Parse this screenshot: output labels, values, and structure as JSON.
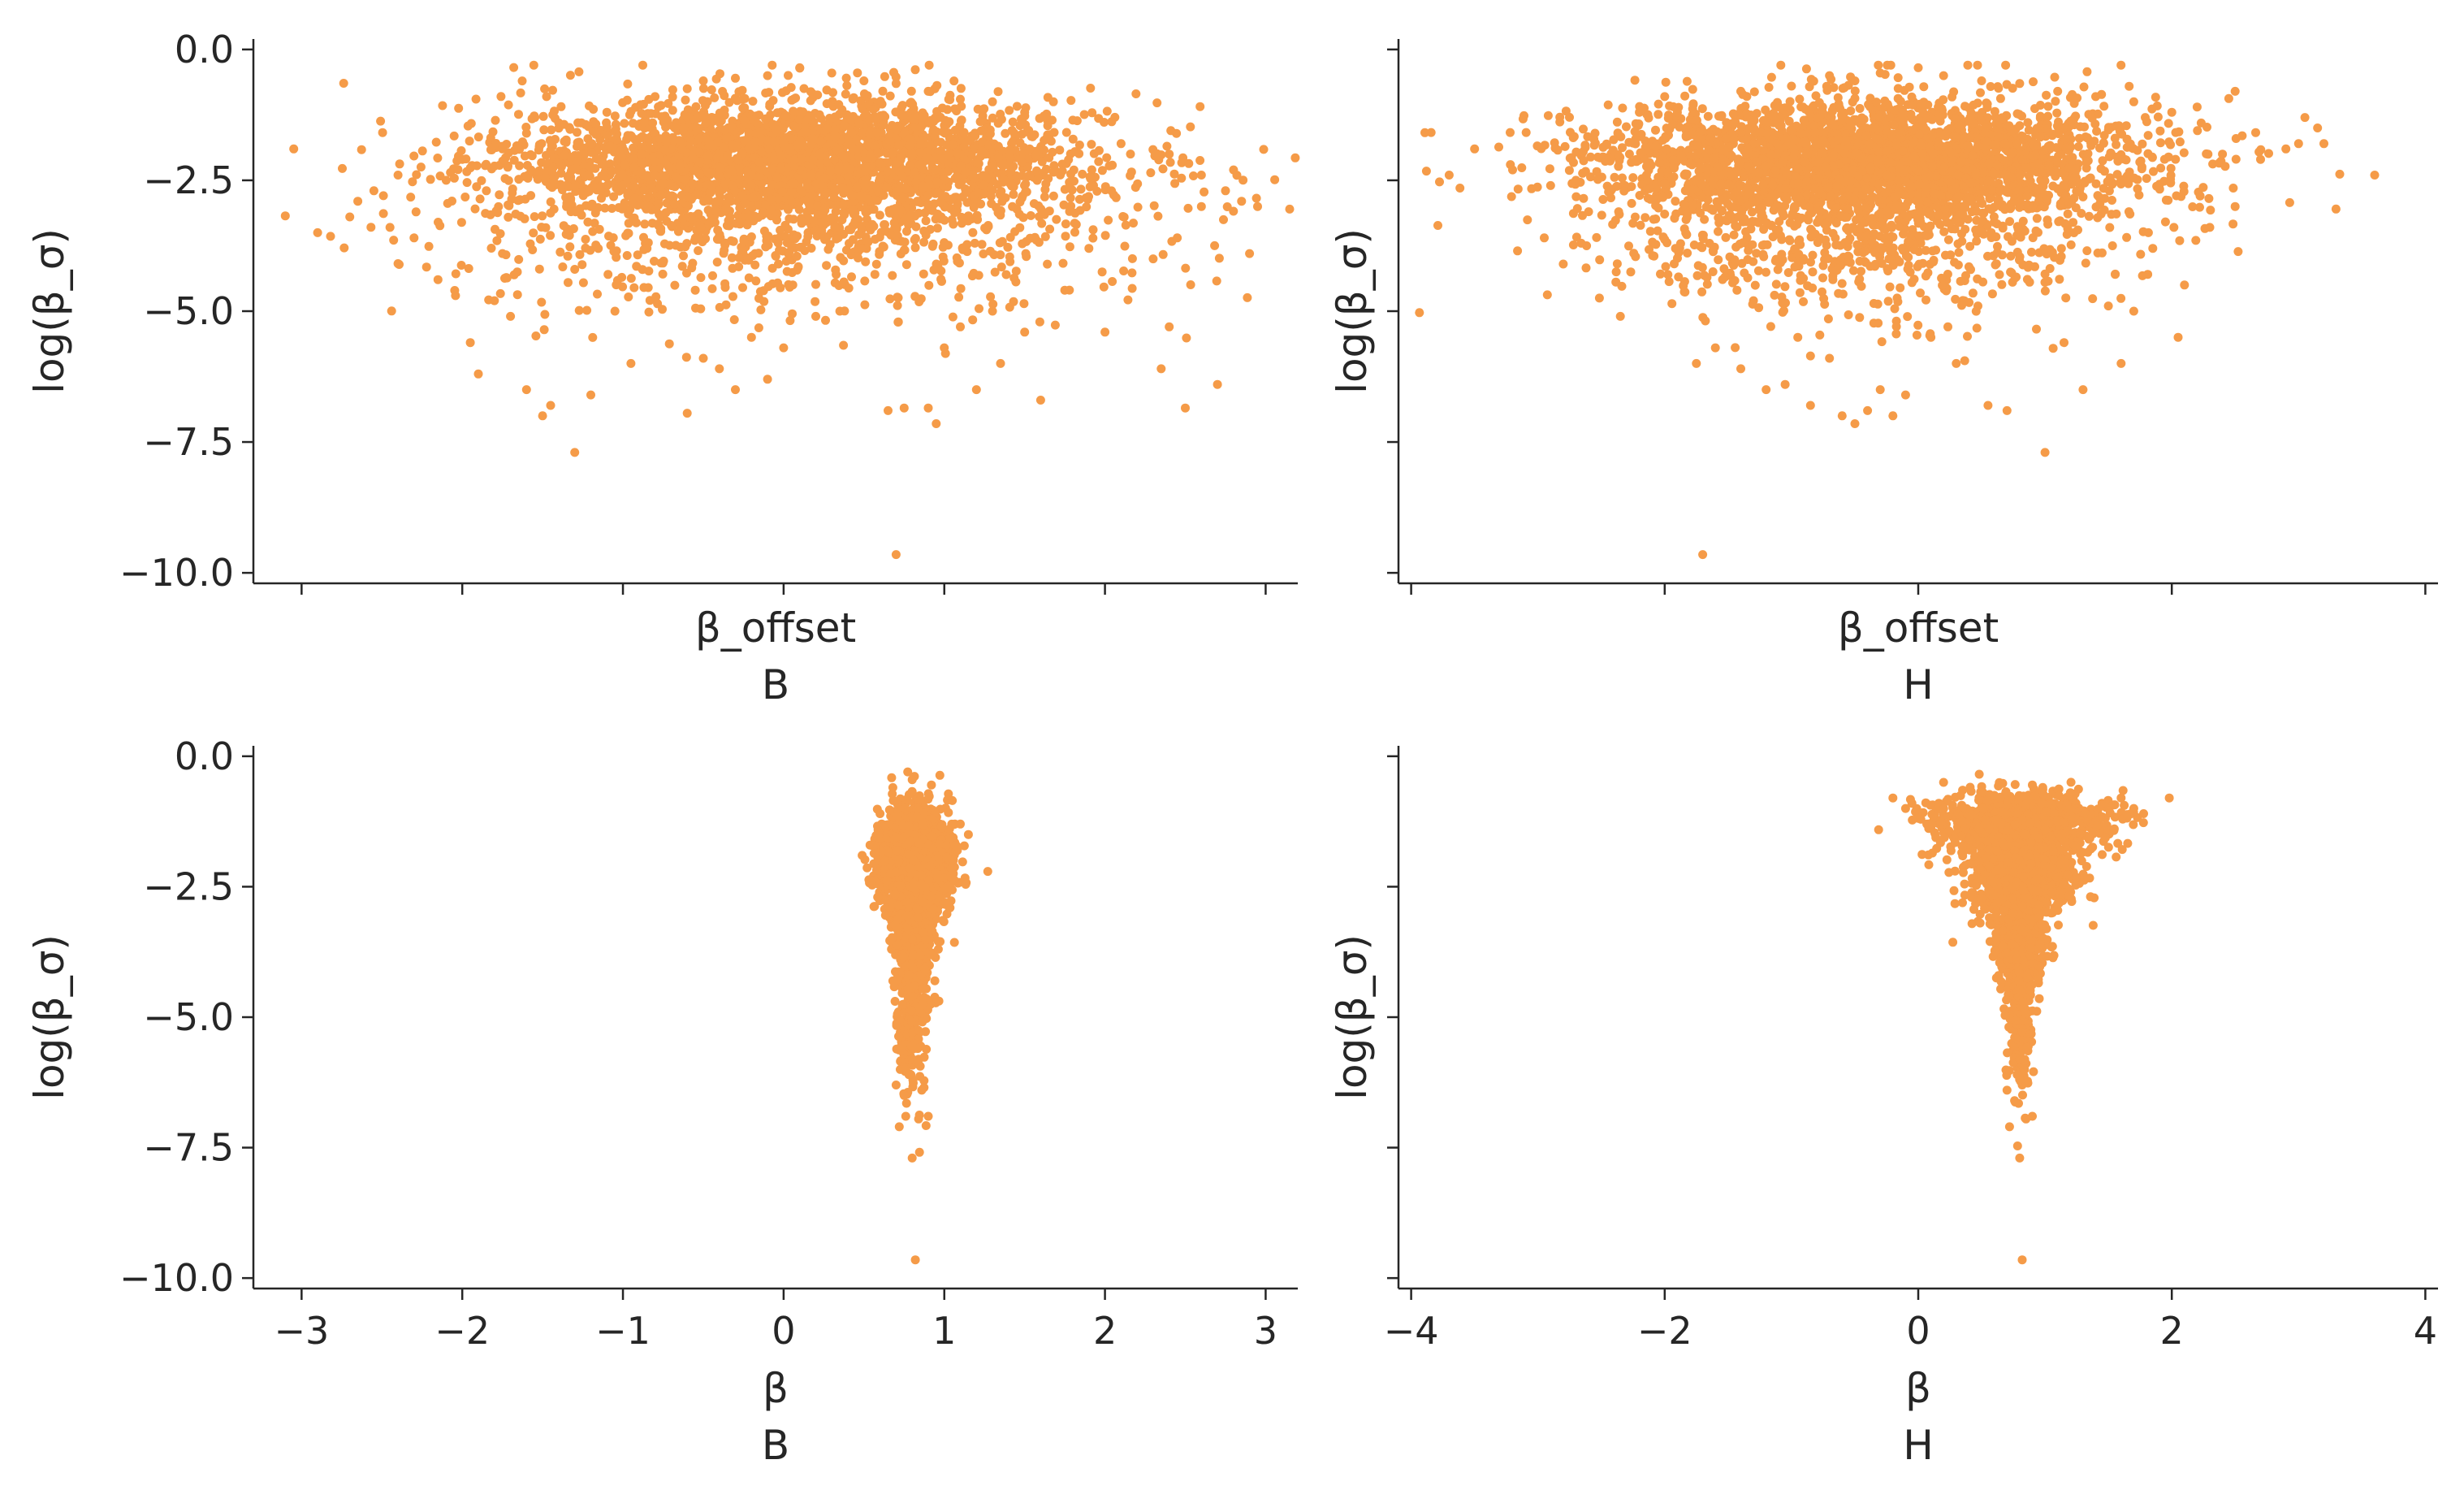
{
  "chart_data": [
    {
      "id": "top-left",
      "type": "scatter",
      "xlabel": "β_offset",
      "xlabel2": "B",
      "ylabel": "log(β_σ)",
      "xlim": [
        -3.3,
        3.2
      ],
      "ylim": [
        -10.2,
        0.2
      ],
      "xticks": [
        -3,
        -2,
        -1,
        0,
        1,
        2,
        3
      ],
      "xtick_labels_visible": false,
      "yticks": [
        0.0,
        -2.5,
        -5.0,
        -7.5,
        -10.0
      ],
      "ytick_labels": [
        "0.0",
        "−2.5",
        "−5.0",
        "−7.5",
        "−10.0"
      ],
      "ytick_labels_visible": true,
      "color": "#f59b48",
      "grid": false,
      "points": [
        [
          -2.9,
          -3.5
        ],
        [
          -2.7,
          -3.2
        ],
        [
          -2.65,
          -2.9
        ],
        [
          -2.45,
          -3.4
        ],
        [
          -2.4,
          -2.4
        ],
        [
          -2.3,
          -3.6
        ],
        [
          -2.15,
          -3.3
        ],
        [
          -2.1,
          -2.5
        ],
        [
          -2.0,
          -2.1
        ],
        [
          -1.95,
          -5.6
        ],
        [
          -1.9,
          -6.2
        ],
        [
          -1.85,
          -2.7
        ],
        [
          -1.8,
          -4.8
        ],
        [
          -1.75,
          -3.9
        ],
        [
          -1.7,
          -5.1
        ],
        [
          -1.6,
          -6.5
        ],
        [
          -1.5,
          -7.0
        ],
        [
          -1.45,
          -6.8
        ],
        [
          -1.3,
          -7.7
        ],
        [
          -1.3,
          -4.2
        ],
        [
          -1.2,
          -6.6
        ],
        [
          -1.2,
          -3.0
        ],
        [
          -1.05,
          -5.0
        ],
        [
          -0.95,
          -6.0
        ],
        [
          -0.85,
          -3.8
        ],
        [
          -0.6,
          -6.95
        ],
        [
          -0.55,
          -4.6
        ],
        [
          -0.5,
          -5.9
        ],
        [
          -0.4,
          -6.1
        ],
        [
          -0.3,
          -6.5
        ],
        [
          -0.2,
          -5.5
        ],
        [
          -0.1,
          -6.3
        ],
        [
          0.0,
          -5.7
        ],
        [
          0.2,
          -5.1
        ],
        [
          0.35,
          -5.0
        ],
        [
          0.65,
          -6.9
        ],
        [
          0.7,
          -9.65
        ],
        [
          0.75,
          -6.85
        ],
        [
          0.9,
          -6.85
        ],
        [
          0.95,
          -7.15
        ],
        [
          1.0,
          -5.7
        ],
        [
          1.1,
          -5.3
        ],
        [
          1.2,
          -6.5
        ],
        [
          1.3,
          -5.0
        ],
        [
          1.35,
          -6.0
        ],
        [
          1.5,
          -5.4
        ],
        [
          1.6,
          -6.7
        ],
        [
          1.75,
          -4.6
        ],
        [
          1.9,
          -3.8
        ],
        [
          2.0,
          -5.4
        ],
        [
          2.3,
          -4.0
        ],
        [
          2.35,
          -6.1
        ],
        [
          2.4,
          -5.3
        ],
        [
          2.45,
          -3.6
        ],
        [
          2.5,
          -6.85
        ],
        [
          2.6,
          -3.0
        ],
        [
          2.7,
          -6.4
        ],
        [
          2.75,
          -2.7
        ],
        [
          2.8,
          -2.3
        ],
        [
          2.85,
          -2.9
        ],
        [
          2.9,
          -3.9
        ],
        [
          2.95,
          -3.0
        ],
        [
          -2.55,
          -2.7
        ],
        [
          -1.75,
          -1.9
        ],
        [
          -1.6,
          -1.6
        ],
        [
          -1.4,
          -1.4
        ],
        [
          -1.1,
          -1.2
        ],
        [
          -0.8,
          -0.9
        ],
        [
          -0.6,
          -0.75
        ],
        [
          -0.5,
          -0.6
        ],
        [
          -0.3,
          -0.55
        ],
        [
          -0.1,
          -0.5
        ],
        [
          0.1,
          -0.35
        ],
        [
          0.3,
          -0.45
        ],
        [
          0.5,
          -0.6
        ],
        [
          0.7,
          -0.65
        ],
        [
          0.9,
          -0.8
        ],
        [
          1.1,
          -0.95
        ],
        [
          1.3,
          -1.0
        ],
        [
          1.5,
          -1.2
        ],
        [
          1.8,
          -1.35
        ],
        [
          2.1,
          -1.8
        ],
        [
          2.4,
          -2.0
        ],
        [
          2.6,
          -2.4
        ]
      ],
      "clusters": [
        {
          "cx": 0.1,
          "cy": -2.1,
          "sx": 0.9,
          "sy": 0.55,
          "n": 2400
        },
        {
          "cx": 0.1,
          "cy": -2.7,
          "sx": 1.0,
          "sy": 0.9,
          "n": 900
        },
        {
          "cx": 0.0,
          "cy": -3.8,
          "sx": 1.2,
          "sy": 0.7,
          "n": 300
        }
      ]
    },
    {
      "id": "top-right",
      "type": "scatter",
      "xlabel": "β_offset",
      "xlabel2": "H",
      "ylabel": "log(β_σ)",
      "xlim": [
        -4.1,
        4.1
      ],
      "ylim": [
        -10.2,
        0.2
      ],
      "xticks": [
        -4,
        -2,
        0,
        2,
        4
      ],
      "xtick_labels_visible": false,
      "yticks": [
        0.0,
        -2.5,
        -5.0,
        -7.5,
        -10.0
      ],
      "ytick_labels_visible": false,
      "color": "#f59b48",
      "grid": false,
      "points": [
        [
          -3.7,
          -2.4
        ],
        [
          -3.5,
          -1.9
        ],
        [
          -3.2,
          -2.3
        ],
        [
          -2.95,
          -3.6
        ],
        [
          -2.9,
          -2.6
        ],
        [
          -2.8,
          -4.1
        ],
        [
          -2.7,
          -2.5
        ],
        [
          -2.6,
          -3.1
        ],
        [
          -2.55,
          -1.6
        ],
        [
          -2.35,
          -5.1
        ],
        [
          -2.2,
          -1.2
        ],
        [
          -2.0,
          -0.9
        ],
        [
          -1.9,
          -1.2
        ],
        [
          -1.75,
          -6.0
        ],
        [
          -1.7,
          -9.65
        ],
        [
          -1.6,
          -5.7
        ],
        [
          -1.4,
          -6.1
        ],
        [
          -1.3,
          -4.8
        ],
        [
          -1.2,
          -6.5
        ],
        [
          -1.05,
          -6.4
        ],
        [
          -0.95,
          -5.5
        ],
        [
          -0.85,
          -6.8
        ],
        [
          -0.7,
          -5.9
        ],
        [
          -0.6,
          -7.0
        ],
        [
          -0.5,
          -7.15
        ],
        [
          -0.4,
          -6.9
        ],
        [
          -0.3,
          -6.5
        ],
        [
          -0.2,
          -7.0
        ],
        [
          -0.1,
          -6.6
        ],
        [
          0.1,
          -5.5
        ],
        [
          0.3,
          -6.0
        ],
        [
          0.55,
          -6.8
        ],
        [
          0.7,
          -6.9
        ],
        [
          1.0,
          -7.7
        ],
        [
          1.15,
          -5.6
        ],
        [
          1.3,
          -6.5
        ],
        [
          1.5,
          -4.9
        ],
        [
          1.6,
          -6.0
        ],
        [
          1.7,
          -5.0
        ],
        [
          1.85,
          -3.8
        ],
        [
          2.05,
          -5.5
        ],
        [
          2.1,
          -4.5
        ],
        [
          2.3,
          -3.4
        ],
        [
          2.4,
          -2.0
        ],
        [
          2.5,
          -3.0
        ],
        [
          2.7,
          -2.1
        ],
        [
          2.9,
          -1.9
        ],
        [
          3.0,
          -1.8
        ],
        [
          3.05,
          -1.3
        ],
        [
          3.15,
          -1.5
        ],
        [
          3.2,
          -1.8
        ],
        [
          3.6,
          -2.4
        ],
        [
          -1.4,
          -0.8
        ],
        [
          -1.0,
          -0.7
        ],
        [
          -0.7,
          -0.5
        ],
        [
          -0.5,
          -0.6
        ],
        [
          -0.3,
          -0.45
        ],
        [
          0.0,
          -0.35
        ],
        [
          0.2,
          -0.5
        ],
        [
          0.5,
          -0.6
        ],
        [
          0.8,
          -0.65
        ],
        [
          1.1,
          -0.8
        ],
        [
          1.4,
          -0.9
        ],
        [
          1.7,
          -1.0
        ],
        [
          2.0,
          -1.2
        ],
        [
          2.2,
          -1.1
        ],
        [
          2.5,
          -0.8
        ]
      ],
      "clusters": [
        {
          "cx": -0.4,
          "cy": -2.1,
          "sx": 1.05,
          "sy": 0.55,
          "n": 2400
        },
        {
          "cx": -0.4,
          "cy": -2.8,
          "sx": 1.1,
          "sy": 0.9,
          "n": 900
        },
        {
          "cx": -0.4,
          "cy": -3.9,
          "sx": 0.9,
          "sy": 0.8,
          "n": 300
        }
      ]
    },
    {
      "id": "bottom-left",
      "type": "scatter",
      "xlabel": "β",
      "xlabel2": "B",
      "ylabel": "log(β_σ)",
      "xlim": [
        -3.3,
        3.2
      ],
      "ylim": [
        -10.2,
        0.2
      ],
      "xticks": [
        -3,
        -2,
        -1,
        0,
        1,
        2,
        3
      ],
      "xtick_labels": [
        "−3",
        "−2",
        "−1",
        "0",
        "1",
        "2",
        "3"
      ],
      "xtick_labels_visible": true,
      "yticks": [
        0.0,
        -2.5,
        -5.0,
        -7.5,
        -10.0
      ],
      "ytick_labels": [
        "0.0",
        "−2.5",
        "−5.0",
        "−7.5",
        "−10.0"
      ],
      "ytick_labels_visible": true,
      "color": "#f59b48",
      "grid": false,
      "points": [
        [
          0.82,
          -9.65
        ],
        [
          0.8,
          -7.7
        ],
        [
          0.72,
          -7.1
        ],
        [
          0.76,
          -6.9
        ],
        [
          0.9,
          -6.9
        ],
        [
          0.84,
          -6.95
        ],
        [
          0.7,
          -6.3
        ],
        [
          0.78,
          -6.1
        ],
        [
          0.8,
          -5.8
        ],
        [
          0.75,
          -6.5
        ],
        [
          0.86,
          -6.4
        ],
        [
          0.8,
          -0.45
        ],
        [
          0.92,
          -0.55
        ],
        [
          0.68,
          -0.6
        ],
        [
          1.05,
          -0.85
        ],
        [
          1.1,
          -1.3
        ],
        [
          0.6,
          -1.1
        ],
        [
          1.15,
          -1.5
        ]
      ],
      "clusters": [
        {
          "cx": 0.82,
          "cy": -2.0,
          "sx": 0.11,
          "sy": 0.5,
          "n": 1600
        },
        {
          "cx": 0.81,
          "cy": -3.0,
          "sx": 0.06,
          "sy": 0.8,
          "n": 1000
        },
        {
          "cx": 0.8,
          "cy": -4.6,
          "sx": 0.04,
          "sy": 0.9,
          "n": 300
        }
      ]
    },
    {
      "id": "bottom-right",
      "type": "scatter",
      "xlabel": "β",
      "xlabel2": "H",
      "ylabel": "log(β_σ)",
      "xlim": [
        -4.1,
        4.1
      ],
      "ylim": [
        -10.2,
        0.2
      ],
      "xticks": [
        -4,
        -2,
        0,
        2,
        4
      ],
      "xtick_labels": [
        "−4",
        "−2",
        "0",
        "2",
        "4"
      ],
      "xtick_labels_visible": true,
      "yticks": [
        0.0,
        -2.5,
        -5.0,
        -7.5,
        -10.0
      ],
      "ytick_labels_visible": false,
      "color": "#f59b48",
      "grid": false,
      "points": [
        [
          0.82,
          -9.65
        ],
        [
          0.8,
          -7.7
        ],
        [
          0.72,
          -7.1
        ],
        [
          0.9,
          -6.9
        ],
        [
          0.85,
          -6.95
        ],
        [
          0.7,
          -6.4
        ],
        [
          0.78,
          -6.1
        ],
        [
          0.8,
          -5.8
        ],
        [
          0.76,
          -6.6
        ],
        [
          1.98,
          -0.8
        ],
        [
          -0.2,
          -0.8
        ],
        [
          -0.05,
          -0.9
        ],
        [
          0.2,
          -0.5
        ],
        [
          0.35,
          -0.65
        ],
        [
          0.6,
          -0.75
        ],
        [
          0.9,
          -0.55
        ],
        [
          1.2,
          -0.7
        ],
        [
          1.45,
          -0.9
        ],
        [
          1.6,
          -0.8
        ],
        [
          -0.1,
          -1.0
        ],
        [
          1.7,
          -1.0
        ]
      ],
      "clusters": [
        {
          "cx": 0.8,
          "cy": -1.3,
          "sx": 0.35,
          "sy": 0.3,
          "n": 900
        },
        {
          "cx": 0.8,
          "cy": -2.2,
          "sx": 0.2,
          "sy": 0.45,
          "n": 1000
        },
        {
          "cx": 0.8,
          "cy": -3.3,
          "sx": 0.09,
          "sy": 0.6,
          "n": 700
        },
        {
          "cx": 0.8,
          "cy": -4.8,
          "sx": 0.05,
          "sy": 0.8,
          "n": 250
        }
      ]
    }
  ]
}
